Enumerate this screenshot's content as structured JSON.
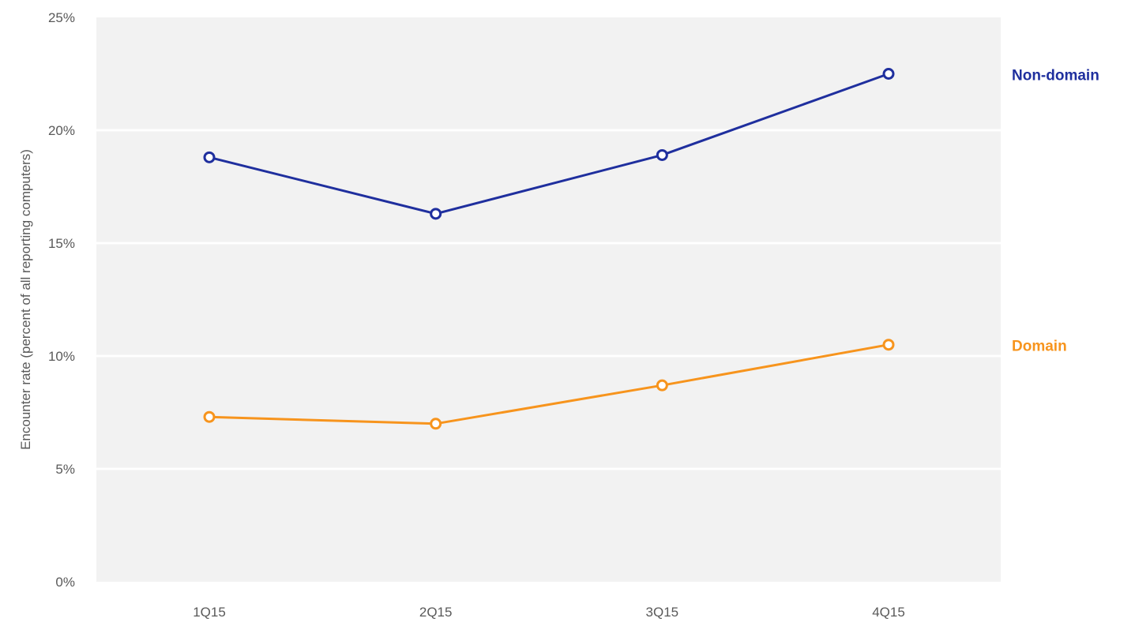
{
  "chart_data": {
    "type": "line",
    "title": "",
    "xlabel": "",
    "ylabel": "Encounter rate (percent of all reporting computers)",
    "categories": [
      "1Q15",
      "2Q15",
      "3Q15",
      "4Q15"
    ],
    "ylim": [
      0,
      25
    ],
    "yticks": [
      0,
      5,
      10,
      15,
      20,
      25
    ],
    "ytick_labels": [
      "0%",
      "5%",
      "10%",
      "15%",
      "20%",
      "25%"
    ],
    "grid": true,
    "legend": "right (direct labels)",
    "series": [
      {
        "name": "Non-domain",
        "color": "#1f2f9e",
        "values": [
          18.8,
          16.3,
          18.9,
          22.5
        ]
      },
      {
        "name": "Domain",
        "color": "#f7941d",
        "values": [
          7.3,
          7.0,
          8.7,
          10.5
        ]
      }
    ],
    "plot_background": "#f2f2f2",
    "gridline_color": "#ffffff"
  }
}
